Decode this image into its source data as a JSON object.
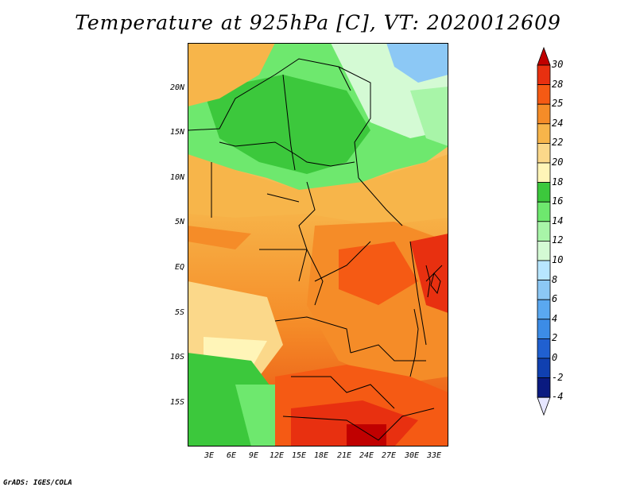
{
  "title": "Temperature at 925hPa [C], VT: 2020012609",
  "y_axis_labels": [
    "20N",
    "15N",
    "10N",
    "5N",
    "EQ",
    "5S",
    "10S",
    "15S"
  ],
  "x_axis_labels": [
    "3E",
    "6E",
    "9E",
    "12E",
    "15E",
    "18E",
    "21E",
    "24E",
    "27E",
    "30E",
    "33E"
  ],
  "colorbar": {
    "levels": [
      "30",
      "28",
      "25",
      "24",
      "22",
      "20",
      "18",
      "16",
      "14",
      "12",
      "10",
      "8",
      "6",
      "4",
      "2",
      "0",
      "-2",
      "-4"
    ],
    "colors": [
      "#c00000",
      "#e83010",
      "#f55a14",
      "#f58c28",
      "#f7b54a",
      "#fbd88a",
      "#fff5b8",
      "#3cc83c",
      "#6ee86e",
      "#a8f5a8",
      "#d4fad4",
      "#b8e6ff",
      "#8cc8f5",
      "#5aa8f0",
      "#3c8ce6",
      "#2060d0",
      "#1040b0",
      "#0a1a80",
      "#e6e6ff"
    ]
  },
  "credit": "GrADS: IGES/COLA"
}
